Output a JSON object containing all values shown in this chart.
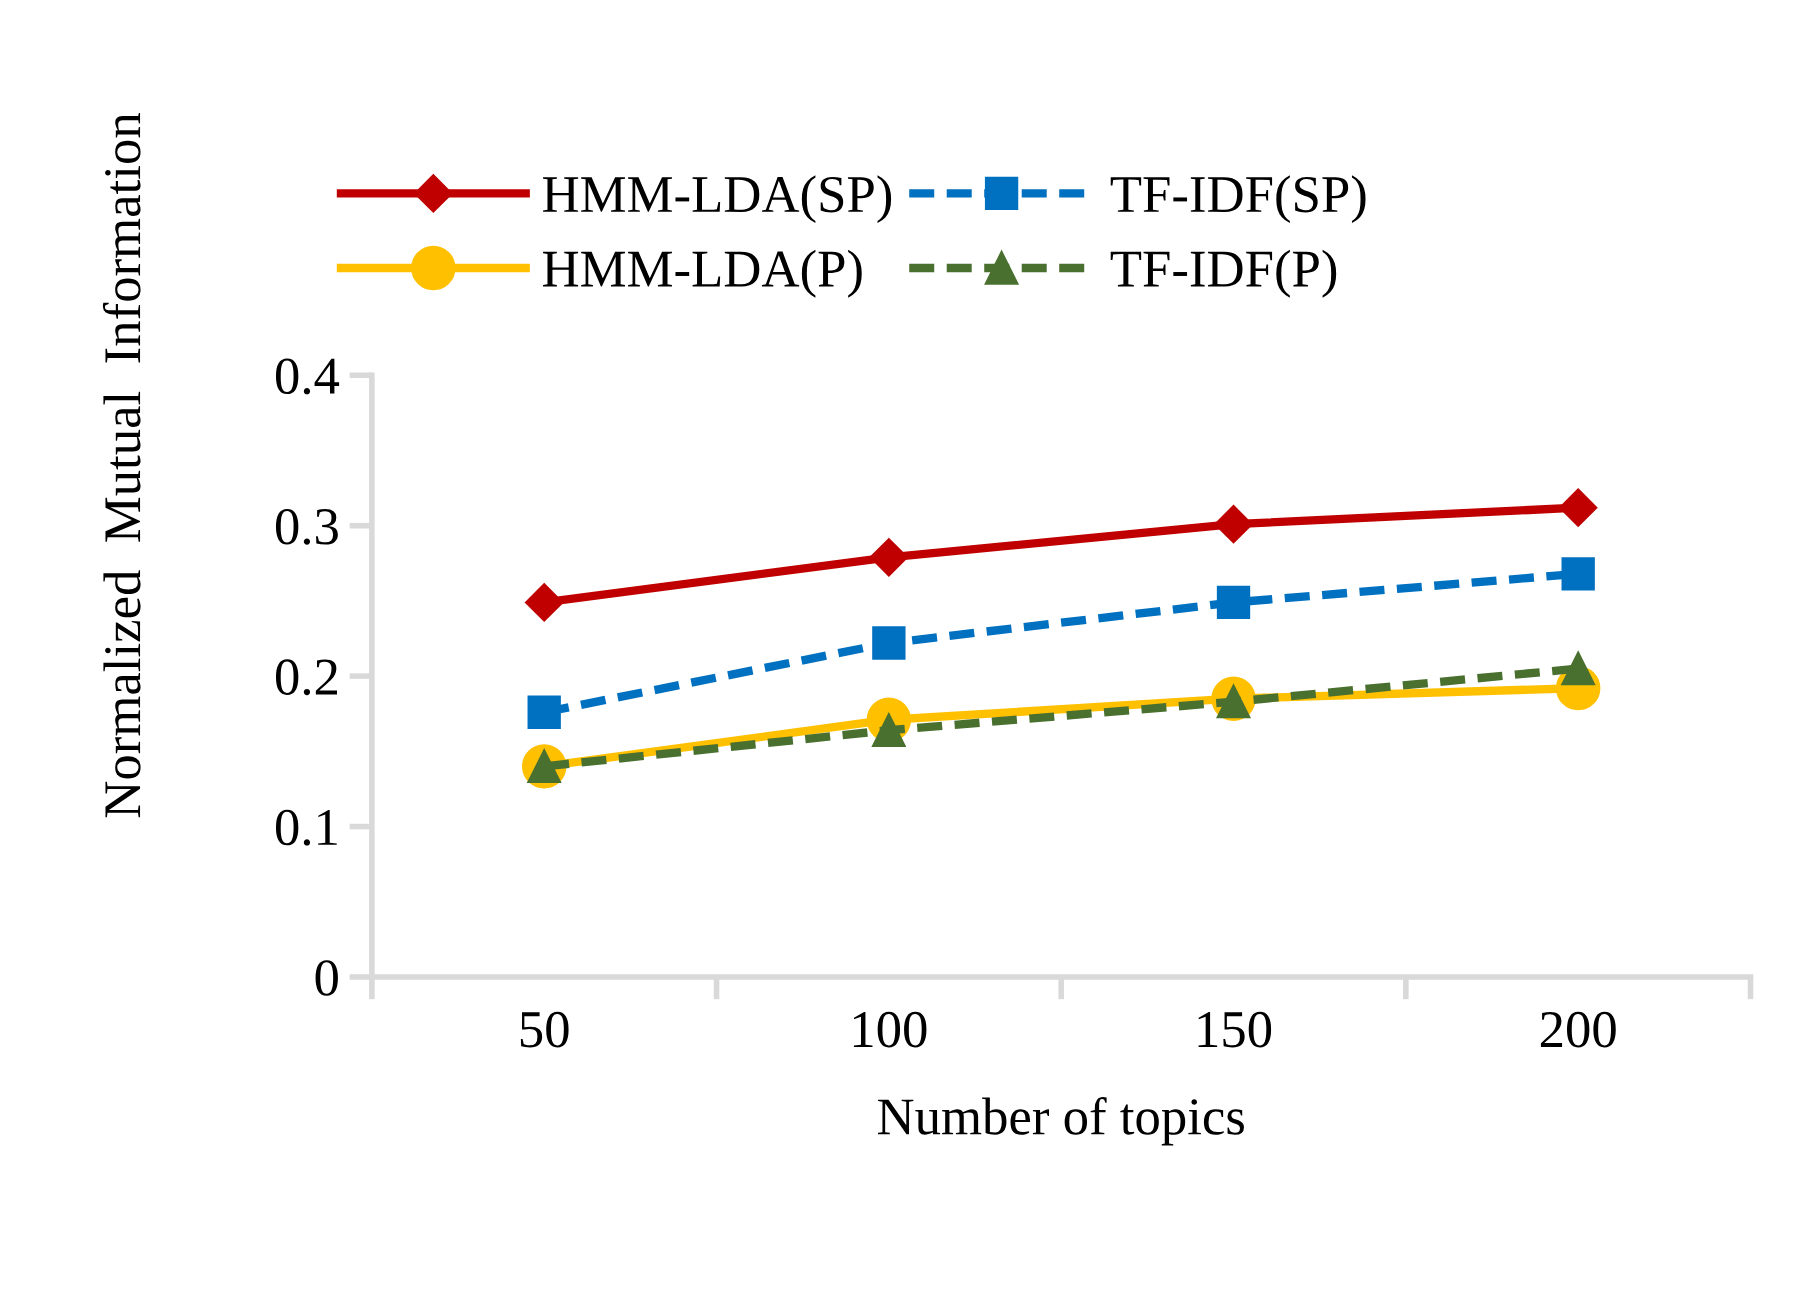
{
  "chart_data": {
    "type": "line",
    "xlabel": "Number of topics",
    "ylabel": "Normalized  Mutual  Information",
    "categories": [
      "50",
      "100",
      "150",
      "200"
    ],
    "series": [
      {
        "name": "HMM-LDA(SP)",
        "color": "#c00000",
        "marker": "diamond",
        "line_style": "solid",
        "values": [
          0.249,
          0.279,
          0.301,
          0.312
        ]
      },
      {
        "name": "TF-IDF(SP)",
        "color": "#0070c0",
        "marker": "square",
        "line_style": "dashed",
        "values": [
          0.176,
          0.222,
          0.249,
          0.268
        ]
      },
      {
        "name": "HMM-LDA(P)",
        "color": "#ffc000",
        "marker": "circle",
        "line_style": "solid",
        "values": [
          0.14,
          0.171,
          0.185,
          0.192
        ]
      },
      {
        "name": "TF-IDF(P)",
        "color": "#4a7030",
        "marker": "triangle",
        "line_style": "dashed",
        "values": [
          0.14,
          0.164,
          0.183,
          0.205
        ]
      }
    ],
    "ylim": [
      0,
      0.4
    ],
    "yticks": [
      {
        "value": 0,
        "label": "0"
      },
      0.1,
      0.2,
      0.3,
      0.4
    ],
    "grid": false,
    "legend": "top"
  }
}
